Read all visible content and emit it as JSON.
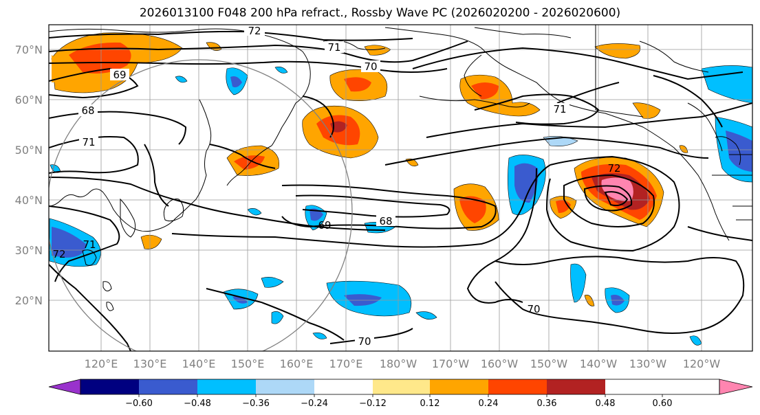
{
  "title": "2026013100 F048 200 hPa refract., Rossby Wave PC (2026020200 - 2026020600)",
  "longitude_labels": [
    "120°E",
    "130°E",
    "140°E",
    "150°E",
    "160°E",
    "170°E",
    "180°W",
    "170°W",
    "160°W",
    "150°W",
    "140°W",
    "130°W",
    "120°W"
  ],
  "latitude_labels": [
    "70°N",
    "60°N",
    "50°N",
    "40°N",
    "30°N",
    "20°N"
  ],
  "contour_labels": [
    "72",
    "71",
    "70",
    "69",
    "68",
    "71",
    "72",
    "71",
    "72",
    "69",
    "68",
    "70",
    "70",
    "71"
  ],
  "colorbar": {
    "ticks": [
      "−0.60",
      "−0.48",
      "−0.36",
      "−0.24",
      "−0.12",
      "0.12",
      "0.24",
      "0.36",
      "0.48",
      "0.60"
    ],
    "colors": [
      "#9932cc",
      "#000080",
      "#3a5bcf",
      "#00bfff",
      "#add8f7",
      "#ffffff",
      "#ffe88a",
      "#ffa500",
      "#ff4500",
      "#b22222",
      "#ff85b0"
    ]
  },
  "colors": {
    "contour": "#000000",
    "coastline": "#000000",
    "gridline": "#999999",
    "circle": "#808080"
  }
}
